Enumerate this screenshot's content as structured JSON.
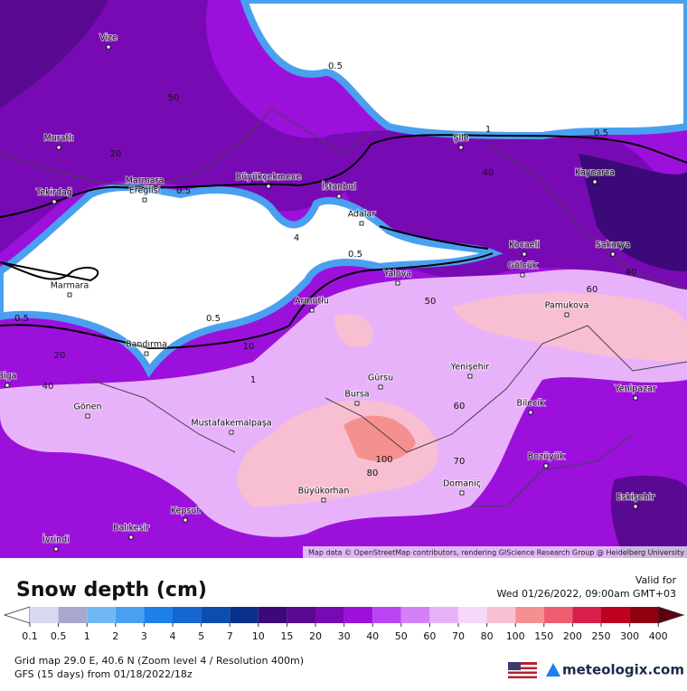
{
  "map": {
    "places": [
      "Vize",
      "Muratlı",
      "Tekirdağ",
      "Marmara",
      "Ereğlisi",
      "Büyükçekmece",
      "İstanbul",
      "Adalar",
      "Şile",
      "Kaynarca",
      "Sakarya",
      "Kocaeli",
      "Gölcük",
      "Yalova",
      "Armutlu",
      "Marmara",
      "Bandırma",
      "Biga",
      "Gürsu",
      "Bursa",
      "Yenişehir",
      "Bilecik",
      "Pamukova",
      "Yenipazar",
      "Gönen",
      "Mustafakemalpaşa",
      "Bozüyük",
      "Domaniç",
      "Büyükorhan",
      "Kepsut",
      "Balıkesir",
      "İvrindi",
      "Eskişehir"
    ],
    "contour_labels": [
      "0.5",
      "50",
      "1",
      "0.5",
      "20",
      "0.5",
      "40",
      "0.5",
      "4",
      "40",
      "60",
      "50",
      "0.5",
      "0.5",
      "20",
      "40",
      "60",
      "100",
      "80",
      "70",
      "10",
      "1"
    ],
    "attribution": "Map data © OpenStreetMap contributors, rendering GIScience Research Group @ Heidelberg University"
  },
  "legend": {
    "title": "Snow depth (cm)",
    "valid_label": "Valid for",
    "valid_time": "Wed 01/26/2022, 09:00am GMT+03",
    "ticks": [
      0.1,
      0.5,
      1,
      2,
      3,
      4,
      5,
      7,
      10,
      15,
      20,
      30,
      40,
      50,
      60,
      70,
      80,
      100,
      150,
      200,
      250,
      300,
      400
    ],
    "below_color": "#ffffff",
    "colors": [
      "#d8d8f0",
      "#a8a8cc",
      "#70b8f4",
      "#4aa0f0",
      "#1e80e8",
      "#1666d0",
      "#0c4eb0",
      "#08308c",
      "#3c0a78",
      "#5a0a92",
      "#780ab4",
      "#9c10dc",
      "#bb44f2",
      "#d680f6",
      "#e8b2fa",
      "#f6d8fb",
      "#f8bfd2",
      "#f59090",
      "#ef5e70",
      "#d81e4a",
      "#bd0020",
      "#900012"
    ],
    "above_color": "#5e0010"
  },
  "footer": {
    "grid": "Grid map 29.0 E, 40.6 N (Zoom level 4 / Resolution 400m)",
    "model": "GFS (15 days) from  01/18/2022/18z",
    "brand": "meteologix.com"
  }
}
